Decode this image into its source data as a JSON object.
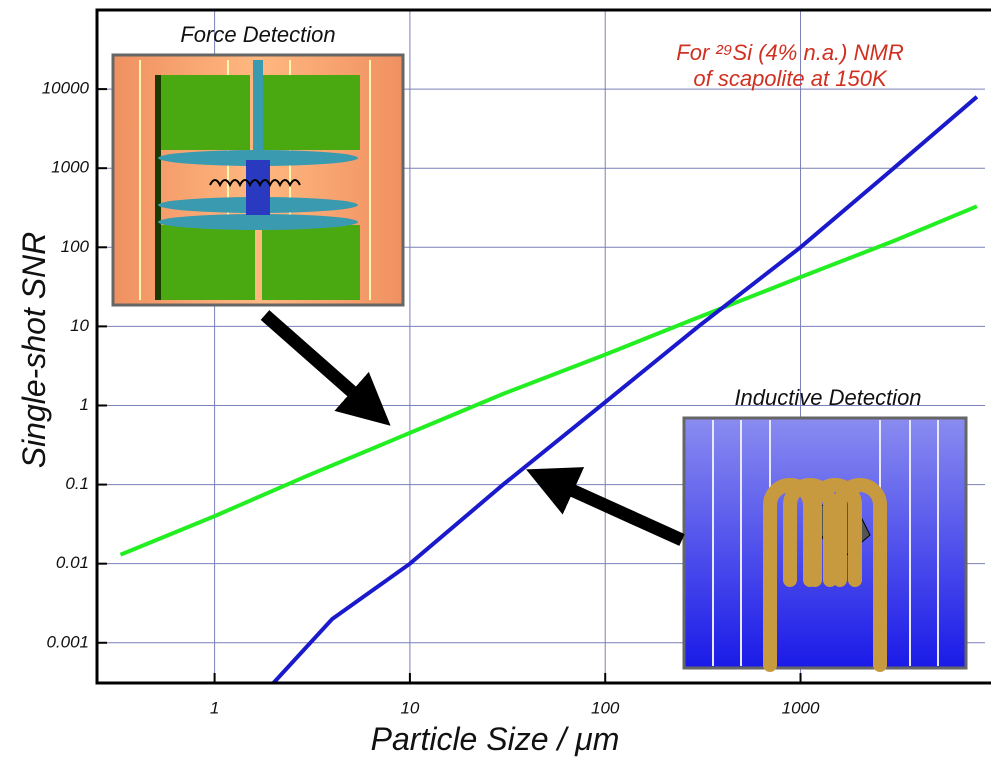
{
  "chart_data": {
    "type": "line",
    "xlabel": "Particle Size  /  μm",
    "ylabel": "Single-shot SNR",
    "annotation": [
      "For ²⁹Si (4% n.a.) NMR",
      "of scapolite at 150K"
    ],
    "inset_labels": [
      "Force Detection",
      "Inductive Detection"
    ],
    "xscale": "log",
    "yscale": "log",
    "grid": true,
    "xlim": [
      0.25,
      8800
    ],
    "ylim": [
      0.00031,
      100000
    ],
    "xticks": [
      1,
      10,
      100,
      1000
    ],
    "yticks": [
      0.001,
      0.01,
      0.1,
      1,
      10,
      100,
      1000,
      10000
    ],
    "series": [
      {
        "color": "#22ee22",
        "x": [
          0.33,
          1,
          3,
          10,
          30,
          100,
          300,
          1000,
          3000,
          8000
        ],
        "values": [
          0.013,
          0.04,
          0.13,
          0.45,
          1.4,
          4.4,
          13,
          42,
          120,
          330
        ]
      },
      {
        "color": "#1a1acc",
        "x": [
          2,
          4,
          10,
          30,
          100,
          300,
          1000,
          3000,
          8000
        ],
        "values": [
          0.00031,
          0.002,
          0.01,
          0.1,
          1.1,
          10,
          100,
          1000,
          8000
        ]
      }
    ]
  }
}
